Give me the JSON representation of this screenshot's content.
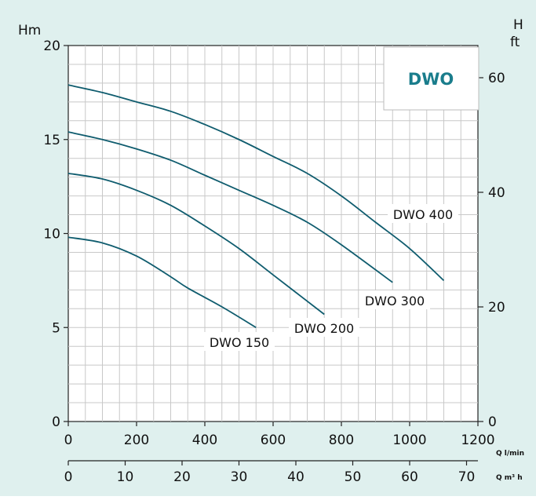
{
  "chart_data": {
    "type": "line",
    "badge": "DWO",
    "y_left_unit": "Hm",
    "y_right_unit_top": "H",
    "y_right_unit_bottom": "ft",
    "x_unit_flow": "Q l/min",
    "x_unit_volume": "Q m³ h",
    "x_range": [
      0,
      1200
    ],
    "y_range": [
      0,
      20
    ],
    "x_ticks": [
      0,
      200,
      400,
      600,
      800,
      1000,
      1200
    ],
    "y_ticks": [
      0,
      5,
      10,
      15,
      20
    ],
    "y_right_ticks": [
      0,
      20,
      40,
      60
    ],
    "x2_ticks": [
      0,
      10,
      20,
      30,
      40,
      50,
      60,
      70
    ],
    "grid": true,
    "colors": {
      "background": "#dff0ee",
      "plot": "#ffffff",
      "grid": "#c8c8c8",
      "curve": "#0f5c6e",
      "badge": "#1a7d8c"
    },
    "series": [
      {
        "name": "DWO 150",
        "x": [
          0,
          100,
          200,
          300,
          350,
          450,
          550
        ],
        "y": [
          9.8,
          9.5,
          8.8,
          7.7,
          7.1,
          6.1,
          5.0
        ]
      },
      {
        "name": "DWO 200",
        "x": [
          0,
          100,
          200,
          300,
          400,
          500,
          600,
          750
        ],
        "y": [
          13.2,
          12.9,
          12.3,
          11.5,
          10.4,
          9.2,
          7.8,
          5.7
        ]
      },
      {
        "name": "DWO 300",
        "x": [
          0,
          100,
          200,
          300,
          400,
          500,
          600,
          700,
          800,
          950
        ],
        "y": [
          15.4,
          15.0,
          14.5,
          13.9,
          13.1,
          12.3,
          11.5,
          10.6,
          9.4,
          7.4
        ]
      },
      {
        "name": "DWO 400",
        "x": [
          0,
          100,
          200,
          300,
          400,
          500,
          600,
          700,
          800,
          900,
          1000,
          1100
        ],
        "y": [
          17.9,
          17.5,
          17.0,
          16.5,
          15.8,
          15.0,
          14.1,
          13.2,
          12.0,
          10.6,
          9.2,
          7.5
        ]
      }
    ]
  }
}
